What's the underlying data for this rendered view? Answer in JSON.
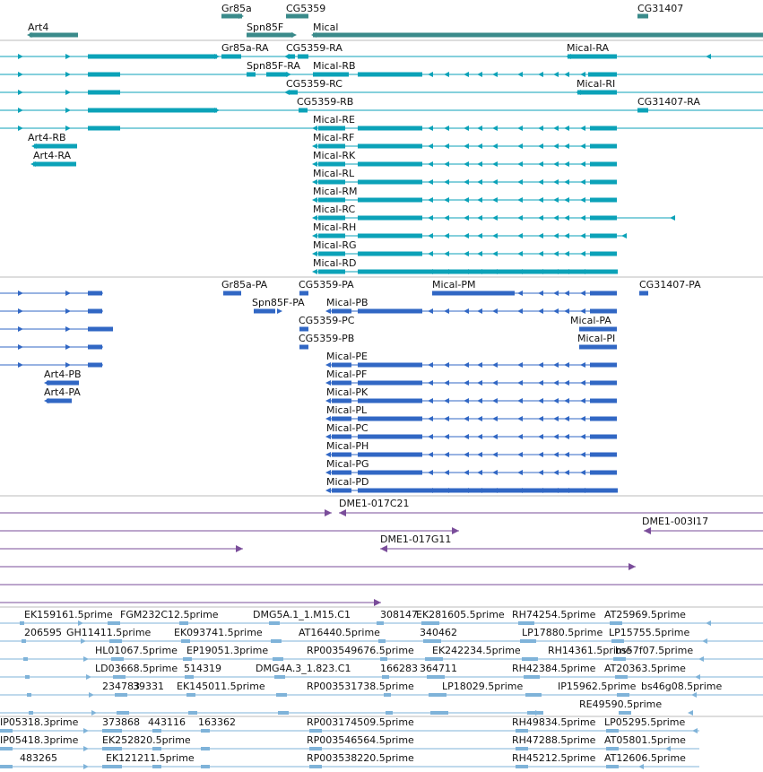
{
  "colors": {
    "gene": "#3a8a8a",
    "transcript": "#0ba2b8",
    "cds": "#3167c4",
    "clone": "#7a4d9a",
    "est": "#7fb3d9",
    "divider": "#bbbbbb"
  },
  "tracks": [
    {
      "name": "gene-span-track",
      "color": "gene",
      "labels": [
        {
          "text": "Gr85a"
        },
        {
          "text": "CG5359"
        },
        {
          "text": "CG31407"
        },
        {
          "text": "Art4"
        },
        {
          "text": "Spn85F"
        },
        {
          "text": "Mical"
        }
      ]
    },
    {
      "name": "transcript-track",
      "color": "transcript",
      "labels": [
        {
          "text": "Gr85a-RA"
        },
        {
          "text": "CG5359-RA"
        },
        {
          "text": "Mical-RA"
        },
        {
          "text": "Spn85F-RA"
        },
        {
          "text": "Mical-RB"
        },
        {
          "text": "CG5359-RC"
        },
        {
          "text": "Mical-RI"
        },
        {
          "text": "CG5359-RB"
        },
        {
          "text": "CG31407-RA"
        },
        {
          "text": "Mical-RE"
        },
        {
          "text": "Art4-RB"
        },
        {
          "text": "Mical-RF"
        },
        {
          "text": "Art4-RA"
        },
        {
          "text": "Mical-RK"
        },
        {
          "text": "Mical-RL"
        },
        {
          "text": "Mical-RM"
        },
        {
          "text": "Mical-RC"
        },
        {
          "text": "Mical-RH"
        },
        {
          "text": "Mical-RG"
        },
        {
          "text": "Mical-RD"
        }
      ]
    },
    {
      "name": "cds-track",
      "color": "cds",
      "labels": [
        {
          "text": "Gr85a-PA"
        },
        {
          "text": "CG5359-PA"
        },
        {
          "text": "Mical-PM"
        },
        {
          "text": "CG31407-PA"
        },
        {
          "text": "Spn85F-PA"
        },
        {
          "text": "Mical-PB"
        },
        {
          "text": "CG5359-PC"
        },
        {
          "text": "Mical-PA"
        },
        {
          "text": "CG5359-PB"
        },
        {
          "text": "Mical-PI"
        },
        {
          "text": "Mical-PE"
        },
        {
          "text": "Art4-PB"
        },
        {
          "text": "Mical-PF"
        },
        {
          "text": "Art4-PA"
        },
        {
          "text": "Mical-PK"
        },
        {
          "text": "Mical-PL"
        },
        {
          "text": "Mical-PC"
        },
        {
          "text": "Mical-PH"
        },
        {
          "text": "Mical-PG"
        },
        {
          "text": "Mical-PD"
        }
      ]
    },
    {
      "name": "clone-track",
      "color": "clone",
      "labels": [
        {
          "text": "DME1-017C21"
        },
        {
          "text": "DME1-003I17"
        },
        {
          "text": "DME1-017G11"
        }
      ]
    },
    {
      "name": "est-track-1",
      "color": "est",
      "labels": [
        {
          "text": "EK159161.5prime"
        },
        {
          "text": "FGM232C12.5prime"
        },
        {
          "text": "DMG5A.1_1.M15.C1"
        },
        {
          "text": "308147"
        },
        {
          "text": "EK281605.5prime"
        },
        {
          "text": "RH74254.5prime"
        },
        {
          "text": "AT25969.5prime"
        },
        {
          "text": "206595"
        },
        {
          "text": "GH11411.5prime"
        },
        {
          "text": "EK093741.5prime"
        },
        {
          "text": "AT16440.5prime"
        },
        {
          "text": "340462"
        },
        {
          "text": "LP17880.5prime"
        },
        {
          "text": "LP15755.5prime"
        },
        {
          "text": "HL01067.5prime"
        },
        {
          "text": "EP19051.3prime"
        },
        {
          "text": "RP003549676.5prime"
        },
        {
          "text": "EK242234.5prime"
        },
        {
          "text": "RH14361.5prime"
        },
        {
          "text": "bs57f07.5prime"
        },
        {
          "text": "LD03668.5prime"
        },
        {
          "text": "514319"
        },
        {
          "text": "DMG4A.3_1.823.C1"
        },
        {
          "text": "166283"
        },
        {
          "text": "364711"
        },
        {
          "text": "RH42384.5prime"
        },
        {
          "text": "AT20363.5prime"
        },
        {
          "text": "234783"
        },
        {
          "text": "39331"
        },
        {
          "text": "EK145011.5prime"
        },
        {
          "text": "RP003531738.5prime"
        },
        {
          "text": "LP18029.5prime"
        },
        {
          "text": "IP15962.5prime"
        },
        {
          "text": "bs46g08.5prime"
        },
        {
          "text": "RE49590.5prime"
        }
      ]
    },
    {
      "name": "est-track-2",
      "color": "est",
      "labels": [
        {
          "text": "IP05318.3prime"
        },
        {
          "text": "373868"
        },
        {
          "text": "443116"
        },
        {
          "text": "163362"
        },
        {
          "text": "RP003174509.5prime"
        },
        {
          "text": "RH49834.5prime"
        },
        {
          "text": "LP05295.5prime"
        },
        {
          "text": "IP05418.3prime"
        },
        {
          "text": "EK252820.5prime"
        },
        {
          "text": "RP003546564.5prime"
        },
        {
          "text": "RH47288.5prime"
        },
        {
          "text": "AT05801.5prime"
        },
        {
          "text": "483265"
        },
        {
          "text": "EK121211.5prime"
        },
        {
          "text": "RP003538220.5prime"
        },
        {
          "text": "RH45212.5prime"
        },
        {
          "text": "AT12606.5prime"
        }
      ]
    }
  ]
}
